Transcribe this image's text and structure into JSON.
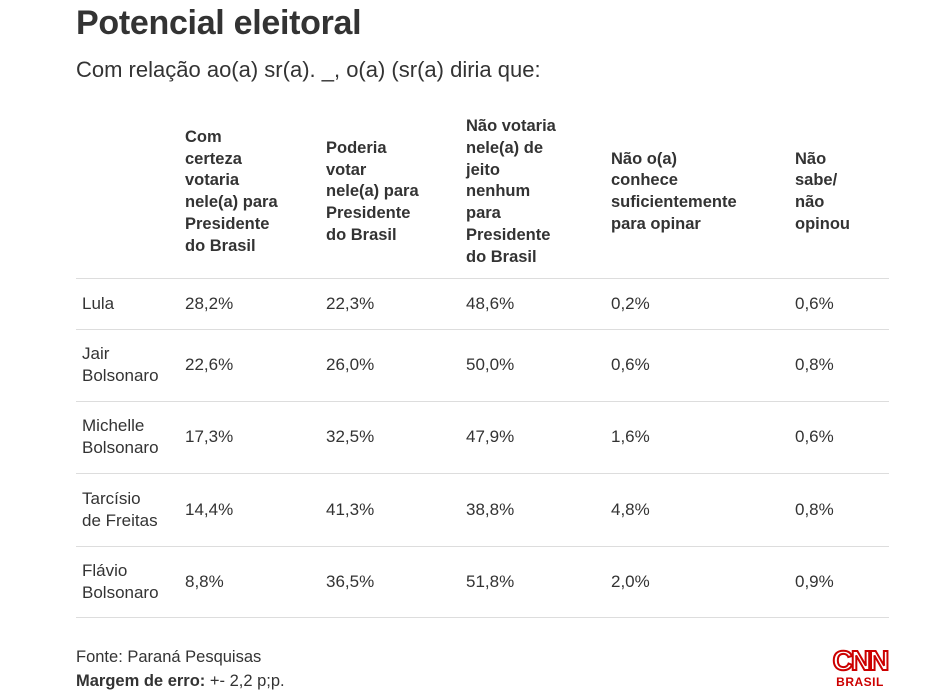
{
  "title": "Potencial eleitoral",
  "subtitle": "Com relação ao(a) sr(a). _, o(a) (sr(a) diria que:",
  "chart_data": {
    "type": "table",
    "columns": [
      "",
      "Com\ncerteza\nvotaria\nnele(a) para\nPresidente\ndo Brasil",
      "Poderia\nvotar\nnele(a) para\nPresidente\ndo Brasil",
      "Não votaria\nnele(a) de\njeito\nnenhum\npara\nPresidente\ndo Brasil",
      "Não o(a)\nconhece\nsuficientemente\npara opinar",
      "Não\nsabe/\nnão\nopinou"
    ],
    "rows": [
      [
        "Lula",
        "28,2%",
        "22,3%",
        "48,6%",
        "0,2%",
        "0,6%"
      ],
      [
        "Jair\nBolsonaro",
        "22,6%",
        "26,0%",
        "50,0%",
        "0,6%",
        "0,8%"
      ],
      [
        "Michelle\nBolsonaro",
        "17,3%",
        "32,5%",
        "47,9%",
        "1,6%",
        "0,6%"
      ],
      [
        "Tarcísio\nde Freitas",
        "14,4%",
        "41,3%",
        "38,8%",
        "4,8%",
        "0,8%"
      ],
      [
        "Flávio\nBolsonaro",
        "8,8%",
        "36,5%",
        "51,8%",
        "2,0%",
        "0,9%"
      ]
    ]
  },
  "footer": {
    "source": "Fonte: Paraná Pesquisas",
    "margin_label": "Margem de erro:",
    "margin_value": " +- 2,2 p;p."
  },
  "logo": {
    "text_top": "CNN",
    "text_bottom": "BRASIL",
    "color": "#cc0000"
  }
}
